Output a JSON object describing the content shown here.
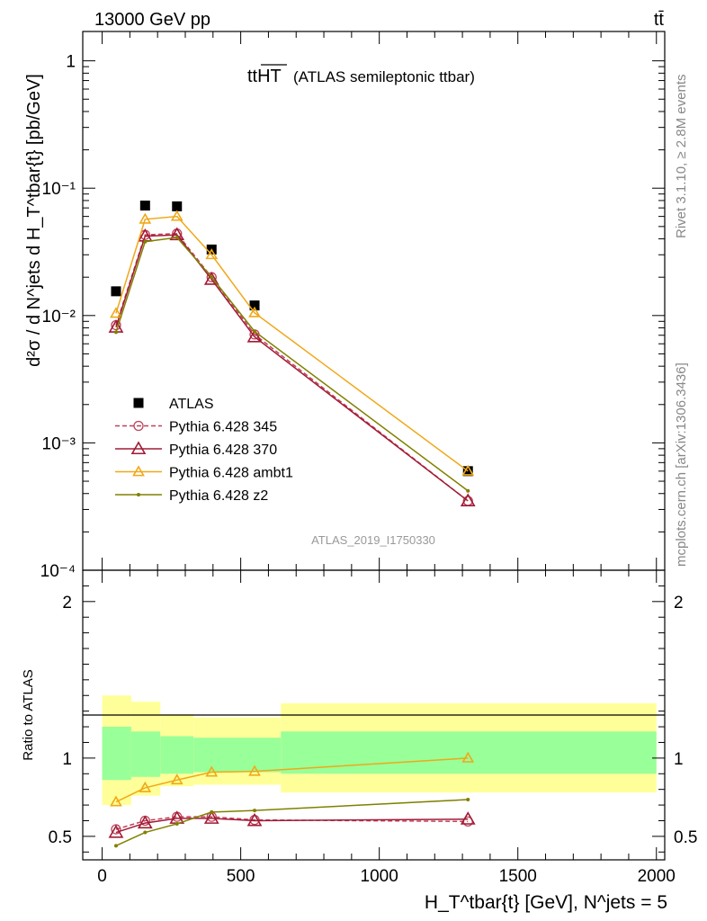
{
  "header": {
    "left": "13000 GeV pp",
    "right": "tt̄"
  },
  "side_labels": {
    "rivet": "Rivet 3.1.10, ≥ 2.8M events",
    "mcplots": "mcplots.cern.ch [arXiv:1306.3436]"
  },
  "chart_data": [
    {
      "type": "scatter",
      "panel": "main",
      "title_main": "ttHT",
      "title_sub": "(ATLAS semileptonic ttbar)",
      "analysis_id": "ATLAS_2019_I1750330",
      "ylabel": "d²σ / d N^jets d H_T^tbar{t} [pb/GeV]",
      "yscale": "log",
      "ylim": [
        0.0001,
        1.7
      ],
      "xlim": [
        -70,
        2030
      ],
      "y_tick_labels": [
        "1",
        "10⁻¹",
        "10⁻²",
        "10⁻³",
        "10⁻⁴"
      ],
      "y_tick_values": [
        1,
        0.1,
        0.01,
        0.001,
        0.0001
      ],
      "legend_position": "lower-left",
      "series": [
        {
          "name": "ATLAS",
          "color": "#000000",
          "marker": "square",
          "x": [
            50,
            155,
            270,
            395,
            550,
            1320
          ],
          "y": [
            0.0155,
            0.073,
            0.072,
            0.033,
            0.012,
            0.0006
          ]
        },
        {
          "name": "Pythia 6.428 345",
          "color": "#c0405a",
          "marker": "open-circle",
          "dashed": true,
          "x": [
            50,
            155,
            270,
            395,
            550,
            1320
          ],
          "y": [
            0.0084,
            0.043,
            0.044,
            0.02,
            0.0071,
            0.00035
          ]
        },
        {
          "name": "Pythia 6.428 370",
          "color": "#a01b35",
          "marker": "open-triangle",
          "x": [
            50,
            155,
            270,
            395,
            550,
            1320
          ],
          "y": [
            0.0081,
            0.042,
            0.043,
            0.0192,
            0.0068,
            0.00035
          ]
        },
        {
          "name": "Pythia 6.428 ambt1",
          "color": "#f0a818",
          "marker": "open-triangle",
          "x": [
            50,
            155,
            270,
            395,
            550,
            1320
          ],
          "y": [
            0.0104,
            0.057,
            0.06,
            0.03,
            0.0105,
            0.0006
          ]
        },
        {
          "name": "Pythia 6.428 z2",
          "color": "#808000",
          "marker": "dot",
          "x": [
            50,
            155,
            270,
            395,
            550,
            1320
          ],
          "y": [
            0.0074,
            0.038,
            0.041,
            0.02,
            0.0075,
            0.00042
          ]
        }
      ]
    },
    {
      "type": "line",
      "panel": "ratio",
      "ylabel": "Ratio to ATLAS",
      "xlabel": "H_T^tbar{t} [GeV], N^jets = 5",
      "ylim": [
        0.35,
        2.2
      ],
      "xlim": [
        -70,
        2030
      ],
      "y_tick_labels": [
        "0.5",
        "1",
        "2"
      ],
      "y_tick_values": [
        0.5,
        1,
        2
      ],
      "x_tick_labels": [
        "0",
        "500",
        "1000",
        "1500",
        "2000"
      ],
      "x_tick_values": [
        0,
        500,
        1000,
        1500,
        2000
      ],
      "bands": {
        "bins": [
          [
            0,
            105
          ],
          [
            105,
            210
          ],
          [
            210,
            330
          ],
          [
            330,
            645
          ],
          [
            645,
            2000
          ]
        ],
        "yellow": [
          [
            0.7,
            1.4
          ],
          [
            0.76,
            1.36
          ],
          [
            0.82,
            1.28
          ],
          [
            0.83,
            1.26
          ],
          [
            0.78,
            1.35
          ]
        ],
        "green": [
          [
            0.86,
            1.2
          ],
          [
            0.88,
            1.17
          ],
          [
            0.9,
            1.14
          ],
          [
            0.91,
            1.13
          ],
          [
            0.9,
            1.17
          ]
        ],
        "yellow_color": "#ffff99",
        "green_color": "#99ff99"
      },
      "series": [
        {
          "name": "Pythia 6.428 345",
          "color": "#c0405a",
          "marker": "open-circle",
          "dashed": true,
          "x": [
            50,
            155,
            270,
            395,
            550,
            1320
          ],
          "y": [
            0.545,
            0.6,
            0.625,
            0.625,
            0.605,
            0.595
          ]
        },
        {
          "name": "Pythia 6.428 370",
          "color": "#a01b35",
          "marker": "open-triangle",
          "x": [
            50,
            155,
            270,
            395,
            550,
            1320
          ],
          "y": [
            0.525,
            0.585,
            0.615,
            0.615,
            0.6,
            0.61
          ]
        },
        {
          "name": "Pythia 6.428 ambt1",
          "color": "#f0a818",
          "marker": "open-triangle",
          "x": [
            50,
            155,
            270,
            395,
            550,
            1320
          ],
          "y": [
            0.72,
            0.81,
            0.86,
            0.91,
            0.915,
            1.0
          ]
        },
        {
          "name": "Pythia 6.428 z2",
          "color": "#808000",
          "marker": "dot",
          "x": [
            50,
            155,
            270,
            395,
            550,
            1320
          ],
          "y": [
            0.44,
            0.525,
            0.58,
            0.655,
            0.665,
            0.735
          ]
        }
      ]
    }
  ]
}
